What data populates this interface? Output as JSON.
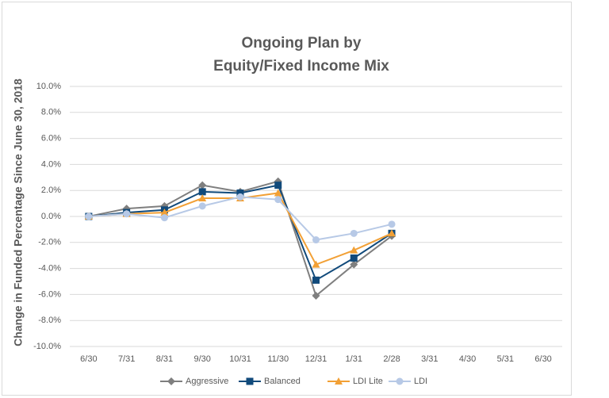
{
  "chart_data": {
    "type": "line",
    "title": [
      "Ongoing Plan by",
      "Equity/Fixed Income Mix"
    ],
    "y_label": "Change in Funded Percentage Since June 30, 2018",
    "categories": [
      "6/30",
      "7/31",
      "8/31",
      "9/30",
      "10/31",
      "11/30",
      "12/31",
      "1/31",
      "2/28",
      "3/31",
      "4/30",
      "5/31",
      "6/30"
    ],
    "series": [
      {
        "name": "Aggressive",
        "color": "#7f7f7f",
        "marker": "diamond",
        "values": [
          0,
          0.6,
          0.8,
          2.4,
          1.9,
          2.7,
          -6.1,
          -3.7,
          -1.5,
          null,
          null,
          null,
          null
        ]
      },
      {
        "name": "Balanced",
        "color": "#114a7b",
        "marker": "square",
        "values": [
          0,
          0.3,
          0.5,
          1.9,
          1.8,
          2.4,
          -4.9,
          -3.2,
          -1.3,
          null,
          null,
          null,
          null
        ]
      },
      {
        "name": "LDI Lite",
        "color": "#f2a035",
        "marker": "triangle",
        "values": [
          0,
          0.2,
          0.3,
          1.4,
          1.4,
          1.8,
          -3.7,
          -2.6,
          -1.3,
          null,
          null,
          null,
          null
        ]
      },
      {
        "name": "LDI",
        "color": "#b7c9e6",
        "marker": "circle",
        "values": [
          0,
          0.2,
          -0.1,
          0.8,
          1.5,
          1.3,
          -1.8,
          -1.3,
          -0.6,
          null,
          null,
          null,
          null
        ]
      }
    ],
    "ylim": [
      -10,
      10
    ],
    "yticks": [
      {
        "value": -10,
        "label": "-10.0%"
      },
      {
        "value": -8,
        "label": "-8.0%"
      },
      {
        "value": -6,
        "label": "-6.0%"
      },
      {
        "value": -4,
        "label": "-4.0%"
      },
      {
        "value": -2,
        "label": "-2.0%"
      },
      {
        "value": 0,
        "label": "0.0%"
      },
      {
        "value": 2,
        "label": "2.0%"
      },
      {
        "value": 4,
        "label": "4.0%"
      },
      {
        "value": 6,
        "label": "6.0%"
      },
      {
        "value": 8,
        "label": "8.0%"
      },
      {
        "value": 10,
        "label": "10.0%"
      }
    ],
    "grid": true,
    "legend": "bottom"
  }
}
